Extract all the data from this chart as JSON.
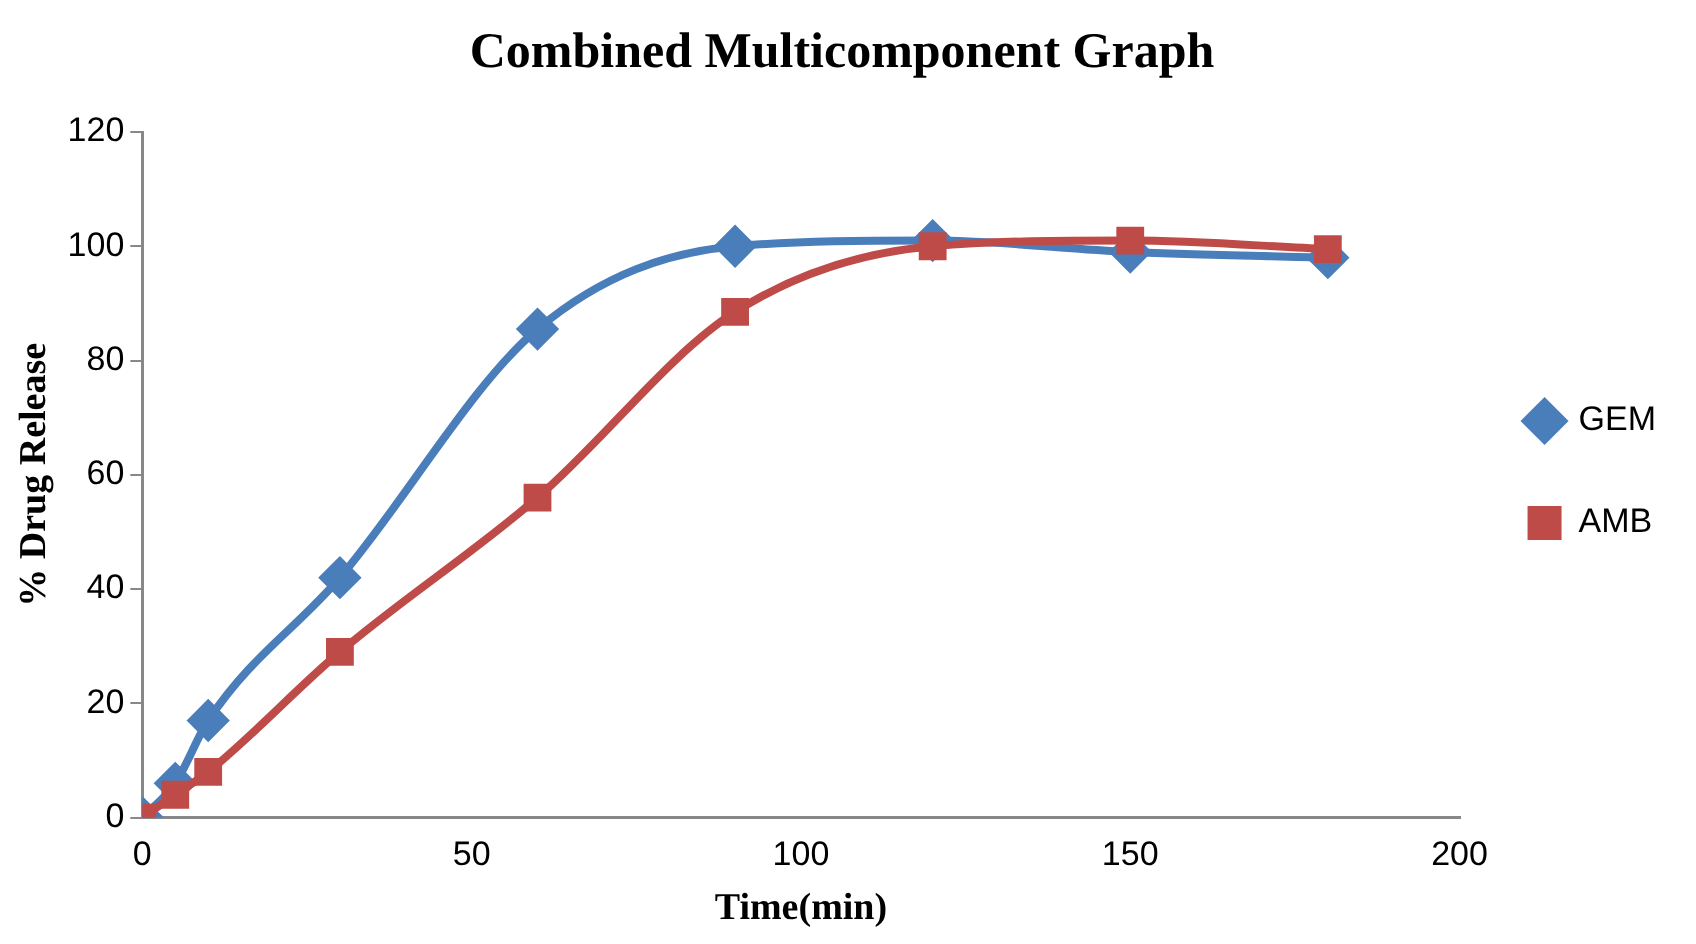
{
  "chart_data": {
    "type": "line",
    "title": "Combined Multicomponent Graph",
    "xlabel": "Time(min)",
    "ylabel": "% Drug Release",
    "x": [
      0,
      5,
      10,
      30,
      60,
      90,
      120,
      150,
      180
    ],
    "series": [
      {
        "name": "GEM",
        "color": "#4a7ebb",
        "marker": "diamond",
        "values": [
          0,
          6,
          17,
          42,
          85.5,
          100,
          101,
          99,
          98
        ]
      },
      {
        "name": "AMB",
        "color": "#be4b48",
        "marker": "square",
        "values": [
          0,
          4,
          8,
          29,
          56,
          88.5,
          100,
          101,
          99.5
        ]
      }
    ],
    "xlim": [
      0,
      200
    ],
    "xticks": [
      0,
      50,
      100,
      150,
      200
    ],
    "ylim": [
      0,
      120
    ],
    "yticks": [
      0,
      20,
      40,
      60,
      80,
      100,
      120
    ],
    "grid": false,
    "legend": "right"
  }
}
